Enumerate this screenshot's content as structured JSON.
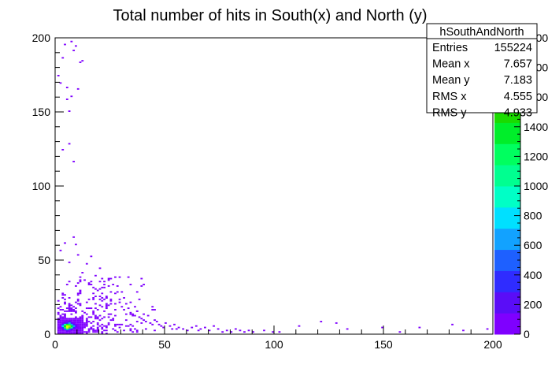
{
  "chart_data": {
    "type": "heatmap",
    "title": "Total number of hits in South(x) and North (y)",
    "xlabel": "",
    "ylabel": "",
    "xlim": [
      0,
      200
    ],
    "ylim": [
      0,
      200
    ],
    "x_ticks": [
      0,
      50,
      100,
      150,
      200
    ],
    "y_ticks": [
      0,
      50,
      100,
      150,
      200
    ],
    "bin_size": 1,
    "zlim": [
      0,
      2000
    ],
    "color_scale": {
      "ticks": [
        0,
        200,
        400,
        600,
        800,
        1000,
        1200,
        1400,
        1600,
        1800,
        2000
      ],
      "colors": [
        "#7f00ff",
        "#5a0df7",
        "#2f2cff",
        "#1e60ff",
        "#12a2ff",
        "#00e0ff",
        "#00ffc6",
        "#00ff90",
        "#00ff5f",
        "#00ee2a",
        "#1adb00",
        "#59e900",
        "#a1f300",
        "#e0ff00"
      ]
    },
    "series": [
      {
        "name": "hSouthAndNorth",
        "core": [
          {
            "x": 5,
            "y": 4,
            "v": 2000
          },
          {
            "x": 5,
            "y": 5,
            "v": 1900
          },
          {
            "x": 6,
            "y": 5,
            "v": 1850
          },
          {
            "x": 6,
            "y": 4,
            "v": 1700
          },
          {
            "x": 4,
            "y": 5,
            "v": 1500
          },
          {
            "x": 5,
            "y": 6,
            "v": 1400
          },
          {
            "x": 7,
            "y": 5,
            "v": 1300
          },
          {
            "x": 4,
            "y": 4,
            "v": 1250
          },
          {
            "x": 6,
            "y": 6,
            "v": 1200
          },
          {
            "x": 7,
            "y": 4,
            "v": 1100
          },
          {
            "x": 5,
            "y": 3,
            "v": 1000
          },
          {
            "x": 4,
            "y": 6,
            "v": 900
          },
          {
            "x": 3,
            "y": 5,
            "v": 800
          },
          {
            "x": 8,
            "y": 5,
            "v": 700
          },
          {
            "x": 6,
            "y": 7,
            "v": 650
          },
          {
            "x": 7,
            "y": 6,
            "v": 600
          },
          {
            "x": 6,
            "y": 3,
            "v": 550
          },
          {
            "x": 4,
            "y": 3,
            "v": 500
          },
          {
            "x": 3,
            "y": 4,
            "v": 420
          },
          {
            "x": 8,
            "y": 4,
            "v": 400
          },
          {
            "x": 5,
            "y": 7,
            "v": 380
          },
          {
            "x": 3,
            "y": 6,
            "v": 300
          },
          {
            "x": 9,
            "y": 5,
            "v": 260
          },
          {
            "x": 7,
            "y": 7,
            "v": 240
          },
          {
            "x": 8,
            "y": 6,
            "v": 220
          },
          {
            "x": 5,
            "y": 2,
            "v": 200
          },
          {
            "x": 4,
            "y": 7,
            "v": 190
          },
          {
            "x": 6,
            "y": 8,
            "v": 170
          },
          {
            "x": 7,
            "y": 3,
            "v": 160
          },
          {
            "x": 3,
            "y": 3,
            "v": 150
          },
          {
            "x": 2,
            "y": 5,
            "v": 140
          },
          {
            "x": 9,
            "y": 4,
            "v": 120
          },
          {
            "x": 10,
            "y": 5,
            "v": 100
          },
          {
            "x": 8,
            "y": 7,
            "v": 90
          },
          {
            "x": 6,
            "y": 2,
            "v": 80
          },
          {
            "x": 2,
            "y": 4,
            "v": 70
          },
          {
            "x": 4,
            "y": 8,
            "v": 60
          },
          {
            "x": 9,
            "y": 6,
            "v": 50
          },
          {
            "x": 3,
            "y": 7,
            "v": 45
          },
          {
            "x": 5,
            "y": 8,
            "v": 40
          }
        ],
        "sparse": [
          [
            1,
            174
          ],
          [
            2,
            169
          ],
          [
            3,
            124
          ],
          [
            3,
            186
          ],
          [
            4,
            195
          ],
          [
            5,
            158
          ],
          [
            5,
            166
          ],
          [
            6,
            128
          ],
          [
            6,
            150
          ],
          [
            7,
            160
          ],
          [
            7,
            197
          ],
          [
            8,
            116
          ],
          [
            8,
            191
          ],
          [
            9,
            194
          ],
          [
            10,
            165
          ],
          [
            11,
            183
          ],
          [
            12,
            184
          ],
          [
            2,
            56
          ],
          [
            4,
            61
          ],
          [
            6,
            48
          ],
          [
            8,
            65
          ],
          [
            9,
            60
          ],
          [
            10,
            53
          ],
          [
            12,
            41
          ],
          [
            14,
            47
          ],
          [
            16,
            52
          ],
          [
            18,
            39
          ],
          [
            20,
            44
          ],
          [
            24,
            37
          ],
          [
            26,
            33
          ],
          [
            28,
            28
          ],
          [
            11,
            38
          ],
          [
            13,
            36
          ],
          [
            15,
            34
          ],
          [
            17,
            31
          ],
          [
            19,
            29
          ],
          [
            21,
            27
          ],
          [
            22,
            31
          ],
          [
            23,
            24
          ],
          [
            25,
            22
          ],
          [
            27,
            20
          ],
          [
            29,
            21
          ],
          [
            30,
            18
          ],
          [
            31,
            16
          ],
          [
            33,
            17
          ],
          [
            34,
            14
          ],
          [
            35,
            13
          ],
          [
            36,
            12
          ],
          [
            37,
            15
          ],
          [
            38,
            11
          ],
          [
            39,
            10
          ],
          [
            40,
            9
          ],
          [
            41,
            8
          ],
          [
            42,
            12
          ],
          [
            43,
            7
          ],
          [
            44,
            6
          ],
          [
            45,
            9
          ],
          [
            46,
            8
          ],
          [
            47,
            6
          ],
          [
            48,
            5
          ],
          [
            49,
            4
          ],
          [
            50,
            7
          ],
          [
            52,
            5
          ],
          [
            53,
            3
          ],
          [
            54,
            6
          ],
          [
            55,
            3
          ],
          [
            56,
            4
          ],
          [
            58,
            3
          ],
          [
            60,
            2
          ],
          [
            62,
            4
          ],
          [
            64,
            5
          ],
          [
            65,
            2
          ],
          [
            66,
            3
          ],
          [
            68,
            4
          ],
          [
            70,
            2
          ],
          [
            72,
            5
          ],
          [
            74,
            3
          ],
          [
            76,
            1
          ],
          [
            78,
            2
          ],
          [
            80,
            1
          ],
          [
            82,
            3
          ],
          [
            84,
            2
          ],
          [
            86,
            1
          ],
          [
            88,
            2
          ],
          [
            90,
            1
          ],
          [
            95,
            2
          ],
          [
            99,
            1
          ],
          [
            102,
            1
          ],
          [
            111,
            5
          ],
          [
            121,
            8
          ],
          [
            128,
            7
          ],
          [
            133,
            3
          ],
          [
            149,
            4
          ],
          [
            157,
            1
          ],
          [
            166,
            4
          ],
          [
            181,
            6
          ],
          [
            186,
            2
          ],
          [
            197,
            3
          ]
        ]
      }
    ]
  },
  "stats_box": {
    "name": "hSouthAndNorth",
    "rows": [
      {
        "label": "Entries",
        "value": "155224"
      },
      {
        "label": "Mean x",
        "value": "7.657"
      },
      {
        "label": "Mean y",
        "value": "7.183"
      },
      {
        "label": "RMS x",
        "value": "4.555"
      },
      {
        "label": "RMS y",
        "value": "4.933"
      }
    ]
  }
}
